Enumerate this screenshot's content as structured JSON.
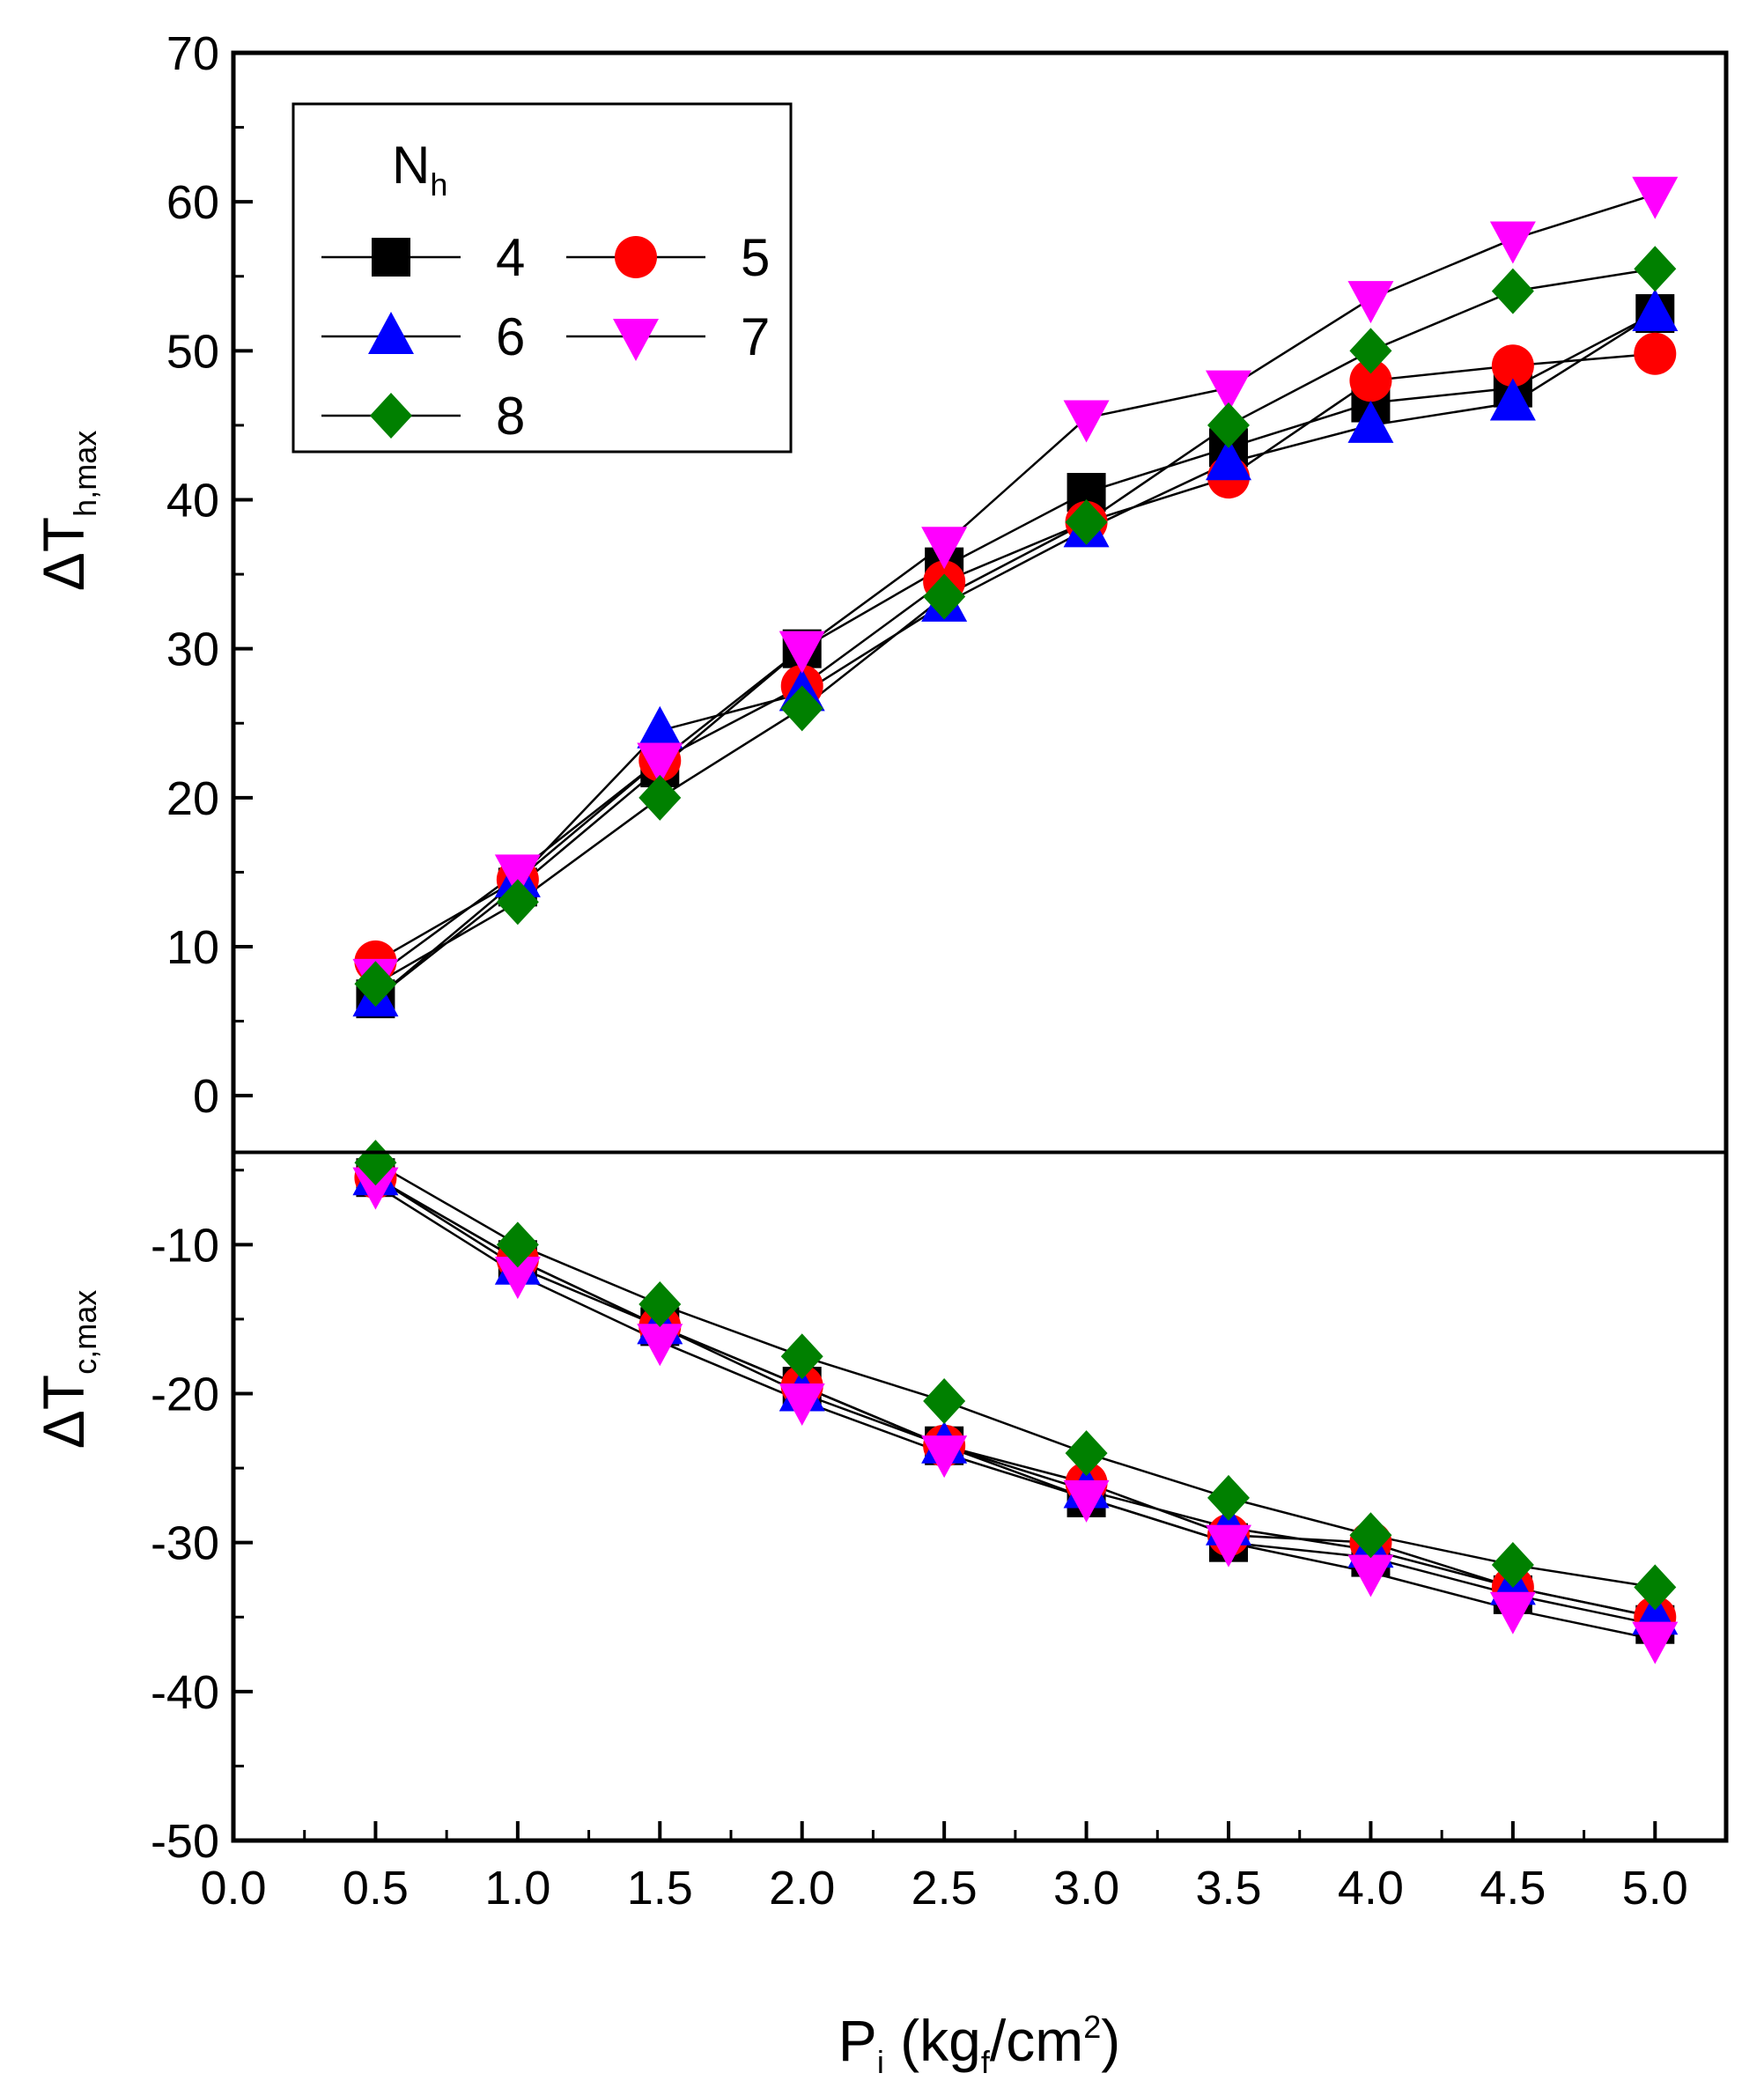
{
  "chart_data": {
    "type": "line",
    "title": "",
    "xlabel": {
      "main": "P",
      "sub": "i",
      "unit_open": " (kg",
      "unit_sub": "f",
      "unit_mid": "/cm",
      "unit_sup": "2",
      "unit_close": ")"
    },
    "ylabel_top": {
      "main": "ΔT",
      "sub": "h,max"
    },
    "ylabel_bottom": {
      "main": "ΔT",
      "sub": "c,max"
    },
    "xlim": [
      0.0,
      5.25
    ],
    "ylim": [
      -50,
      70
    ],
    "x_ticks": [
      "0.0",
      "0.5",
      "1.0",
      "1.5",
      "2.0",
      "2.5",
      "3.0",
      "3.5",
      "4.0",
      "4.5",
      "5.0"
    ],
    "x_tick_values": [
      0.0,
      0.5,
      1.0,
      1.5,
      2.0,
      2.5,
      3.0,
      3.5,
      4.0,
      4.5,
      5.0
    ],
    "y_ticks": [
      "-50",
      "-40",
      "-30",
      "-20",
      "-10",
      "0",
      "10",
      "20",
      "30",
      "40",
      "50",
      "60",
      "70"
    ],
    "y_tick_values": [
      -50,
      -40,
      -30,
      -20,
      -10,
      0,
      10,
      20,
      30,
      40,
      50,
      60,
      70
    ],
    "divider_y": -3.8,
    "legend": {
      "title_main": "N",
      "title_sub": "h",
      "position": "top-left"
    },
    "x": [
      0.5,
      1.0,
      1.5,
      2.0,
      2.5,
      3.0,
      3.5,
      4.0,
      4.5,
      5.0
    ],
    "series": [
      {
        "name": "4",
        "marker": "square",
        "color": "#000000",
        "hot": [
          6.5,
          14.0,
          22.0,
          30.0,
          35.5,
          40.5,
          43.5,
          46.5,
          47.5,
          52.5
        ],
        "cold": [
          -5.5,
          -11.0,
          -15.5,
          -19.5,
          -23.5,
          -27.0,
          -30.0,
          -31.0,
          -33.5,
          -35.5
        ]
      },
      {
        "name": "5",
        "marker": "circle",
        "color": "#ff0000",
        "hot": [
          9.0,
          14.5,
          22.5,
          27.5,
          34.5,
          38.5,
          41.5,
          48.0,
          49.0,
          49.8
        ],
        "cold": [
          -5.5,
          -11.0,
          -15.5,
          -19.5,
          -23.5,
          -26.0,
          -29.5,
          -30.0,
          -33.0,
          -35.0
        ]
      },
      {
        "name": "6",
        "marker": "triangle-up",
        "color": "#0000ff",
        "hot": [
          6.5,
          14.5,
          24.5,
          27.0,
          33.0,
          38.0,
          42.5,
          45.0,
          46.5,
          52.5
        ],
        "cold": [
          -5.5,
          -11.5,
          -15.5,
          -20.0,
          -23.5,
          -26.5,
          -29.0,
          -30.5,
          -33.0,
          -35.0
        ]
      },
      {
        "name": "7",
        "marker": "triangle-down",
        "color": "#ff00ff",
        "hot": [
          8.0,
          15.0,
          22.5,
          30.0,
          37.0,
          45.5,
          47.5,
          53.5,
          57.5,
          60.5
        ],
        "cold": [
          -6.0,
          -12.0,
          -16.5,
          -20.5,
          -24.0,
          -27.0,
          -30.0,
          -32.0,
          -34.5,
          -36.5
        ]
      },
      {
        "name": "8",
        "marker": "diamond",
        "color": "#008000",
        "hot": [
          7.5,
          13.0,
          20.0,
          26.0,
          33.5,
          38.5,
          45.0,
          50.0,
          54.0,
          55.5
        ],
        "cold": [
          -4.5,
          -10.0,
          -14.0,
          -17.5,
          -20.5,
          -24.0,
          -27.0,
          -29.5,
          -31.5,
          -33.0
        ]
      }
    ]
  }
}
